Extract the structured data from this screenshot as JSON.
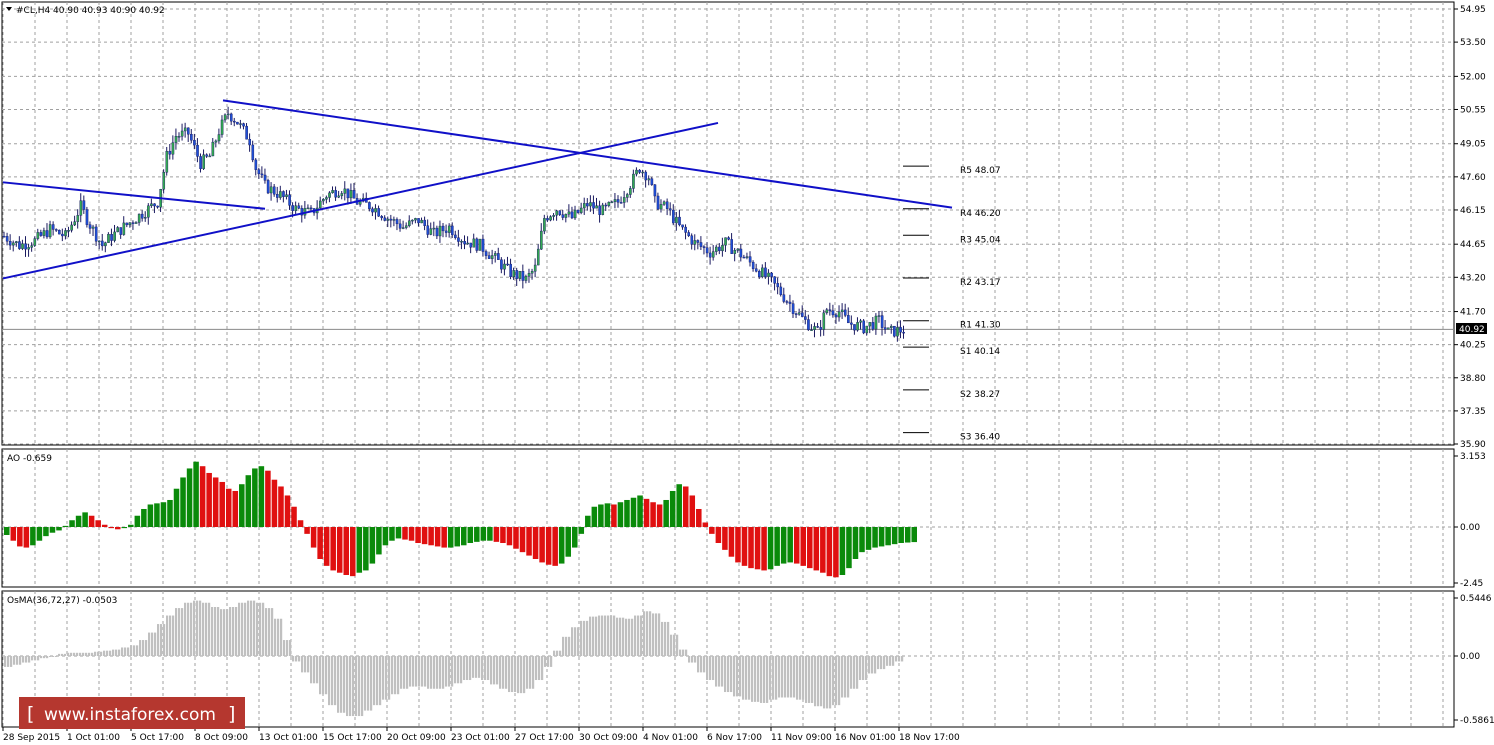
{
  "watermark": "www.instaforex.com",
  "main_panel": {
    "header": "#CL,H4  40.90 40.93 40.90 40.92",
    "last_price": "40.92",
    "price_ticks": [
      "54.95",
      "53.50",
      "52.00",
      "50.55",
      "49.05",
      "47.60",
      "46.15",
      "44.65",
      "43.20",
      "41.70",
      "40.25",
      "38.80",
      "37.35",
      "35.90"
    ],
    "pivot_levels": [
      {
        "label": "R5 48.07",
        "value": 48.07
      },
      {
        "label": "R4 46.20",
        "value": 46.2
      },
      {
        "label": "R3 45.04",
        "value": 45.04
      },
      {
        "label": "R2 43.17",
        "value": 43.17
      },
      {
        "label": "R1 41.30",
        "value": 41.3
      },
      {
        "label": "S1 40.14",
        "value": 40.14
      },
      {
        "label": "S2 38.27",
        "value": 38.27
      },
      {
        "label": "S3 36.40",
        "value": 36.4
      }
    ]
  },
  "ao_panel": {
    "header": "AO -0.659",
    "ticks": [
      "3.153",
      "0.00",
      "-2.45"
    ]
  },
  "osma_panel": {
    "header": "OsMA(36,72,27) -0.0503",
    "ticks": [
      "0.5446",
      "0.00",
      "-0.5861"
    ]
  },
  "time_ticks": [
    "28 Sep 2015",
    "1 Oct 01:00",
    "5 Oct 17:00",
    "8 Oct 09:00",
    "13 Oct 01:00",
    "15 Oct 17:00",
    "20 Oct 09:00",
    "23 Oct 01:00",
    "27 Oct 17:00",
    "30 Oct 09:00",
    "4 Nov 01:00",
    "6 Nov 17:00",
    "11 Nov 09:00",
    "16 Nov 01:00",
    "18 Nov 17:00"
  ],
  "chart_data": {
    "type": "candlestick",
    "symbol": "#CL",
    "timeframe": "H4",
    "ylim": [
      35.9,
      54.95
    ],
    "anchors": [
      [
        0,
        45.0
      ],
      [
        5,
        44.6
      ],
      [
        10,
        44.8
      ],
      [
        15,
        45.3
      ],
      [
        20,
        45.0
      ],
      [
        25,
        46.3
      ],
      [
        28,
        45.5
      ],
      [
        32,
        44.6
      ],
      [
        35,
        45.0
      ],
      [
        40,
        45.5
      ],
      [
        45,
        46.0
      ],
      [
        50,
        46.5
      ],
      [
        53,
        48.5
      ],
      [
        56,
        49.4
      ],
      [
        60,
        49.5
      ],
      [
        64,
        48.2
      ],
      [
        67,
        48.5
      ],
      [
        70,
        49.6
      ],
      [
        73,
        50.4
      ],
      [
        76,
        50.0
      ],
      [
        80,
        49.2
      ],
      [
        82,
        48.0
      ],
      [
        85,
        47.2
      ],
      [
        90,
        46.8
      ],
      [
        95,
        46.2
      ],
      [
        100,
        46.0
      ],
      [
        105,
        46.8
      ],
      [
        110,
        47.1
      ],
      [
        115,
        46.5
      ],
      [
        120,
        46.3
      ],
      [
        125,
        45.8
      ],
      [
        130,
        45.4
      ],
      [
        135,
        45.7
      ],
      [
        140,
        45.1
      ],
      [
        145,
        45.4
      ],
      [
        150,
        44.8
      ],
      [
        155,
        44.6
      ],
      [
        160,
        44.0
      ],
      [
        165,
        43.4
      ],
      [
        170,
        43.1
      ],
      [
        173,
        43.6
      ],
      [
        176,
        45.8
      ],
      [
        180,
        46.2
      ],
      [
        185,
        45.8
      ],
      [
        190,
        46.4
      ],
      [
        195,
        46.1
      ],
      [
        200,
        46.5
      ],
      [
        205,
        47.5
      ],
      [
        207,
        48.0
      ],
      [
        210,
        47.6
      ],
      [
        212,
        46.5
      ],
      [
        216,
        46.2
      ],
      [
        220,
        45.4
      ],
      [
        225,
        44.7
      ],
      [
        230,
        44.3
      ],
      [
        235,
        44.7
      ],
      [
        240,
        44.2
      ],
      [
        245,
        43.6
      ],
      [
        250,
        43.0
      ],
      [
        255,
        42.2
      ],
      [
        260,
        41.4
      ],
      [
        265,
        40.8
      ],
      [
        268,
        41.8
      ],
      [
        272,
        41.7
      ],
      [
        275,
        41.2
      ],
      [
        280,
        41.0
      ],
      [
        285,
        41.3
      ],
      [
        288,
        40.8
      ],
      [
        293,
        40.9
      ]
    ],
    "trendlines": [
      {
        "from": [
          "28 Sep 2015 08:00",
          47.36
        ],
        "to": [
          "12 Oct 13:00",
          46.2
        ]
      },
      {
        "from": [
          "28 Sep 2015 08:00",
          43.15
        ],
        "to": [
          "5 Nov 21:00",
          49.96
        ]
      },
      {
        "from": [
          "8 Oct 13:00",
          50.95
        ],
        "to": [
          "24 Nov 09:00",
          46.25
        ]
      }
    ],
    "ao": [
      -0.35,
      -0.6,
      -0.85,
      -0.9,
      -0.8,
      -0.6,
      -0.4,
      -0.25,
      -0.15,
      0.05,
      0.3,
      0.5,
      0.65,
      0.5,
      0.3,
      0.1,
      -0.05,
      -0.1,
      -0.05,
      0.1,
      0.5,
      0.8,
      1.0,
      1.05,
      1.1,
      1.2,
      1.7,
      2.2,
      2.6,
      2.9,
      2.7,
      2.4,
      2.2,
      2.0,
      1.7,
      1.6,
      1.9,
      2.3,
      2.6,
      2.7,
      2.5,
      2.1,
      1.8,
      1.4,
      0.9,
      0.3,
      -0.3,
      -0.9,
      -1.4,
      -1.7,
      -1.9,
      -2.0,
      -2.1,
      -2.15,
      -2.0,
      -1.9,
      -1.6,
      -1.2,
      -0.8,
      -0.6,
      -0.5,
      -0.55,
      -0.6,
      -0.7,
      -0.75,
      -0.8,
      -0.85,
      -0.9,
      -0.9,
      -0.85,
      -0.8,
      -0.7,
      -0.65,
      -0.6,
      -0.6,
      -0.65,
      -0.7,
      -0.8,
      -0.95,
      -1.1,
      -1.25,
      -1.4,
      -1.55,
      -1.65,
      -1.7,
      -1.6,
      -1.3,
      -0.9,
      -0.3,
      0.5,
      0.9,
      1.0,
      1.05,
      1.0,
      1.1,
      1.2,
      1.3,
      1.4,
      1.25,
      1.1,
      1.0,
      1.2,
      1.6,
      1.9,
      1.8,
      1.4,
      0.8,
      0.2,
      -0.3,
      -0.7,
      -1.0,
      -1.3,
      -1.55,
      -1.7,
      -1.8,
      -1.85,
      -1.9,
      -1.85,
      -1.7,
      -1.6,
      -1.55,
      -1.6,
      -1.7,
      -1.8,
      -1.9,
      -2.0,
      -2.15,
      -2.2,
      -2.1,
      -1.8,
      -1.4,
      -1.1,
      -1.0,
      -0.9,
      -0.85,
      -0.8,
      -0.75,
      -0.7,
      -0.68,
      -0.66
    ],
    "osma": [
      -0.1,
      -0.08,
      -0.06,
      -0.04,
      -0.02,
      0.0,
      0.02,
      0.03,
      0.03,
      0.03,
      0.04,
      0.05,
      0.06,
      0.08,
      0.1,
      0.15,
      0.22,
      0.3,
      0.38,
      0.45,
      0.5,
      0.52,
      0.5,
      0.46,
      0.44,
      0.46,
      0.5,
      0.52,
      0.5,
      0.45,
      0.35,
      0.15,
      -0.05,
      -0.15,
      -0.25,
      -0.35,
      -0.45,
      -0.52,
      -0.55,
      -0.55,
      -0.5,
      -0.45,
      -0.4,
      -0.35,
      -0.3,
      -0.28,
      -0.28,
      -0.3,
      -0.3,
      -0.28,
      -0.25,
      -0.22,
      -0.2,
      -0.22,
      -0.26,
      -0.3,
      -0.33,
      -0.34,
      -0.3,
      -0.22,
      -0.1,
      0.05,
      0.18,
      0.27,
      0.33,
      0.37,
      0.38,
      0.38,
      0.36,
      0.35,
      0.38,
      0.42,
      0.4,
      0.32,
      0.2,
      0.06,
      -0.06,
      -0.15,
      -0.22,
      -0.28,
      -0.33,
      -0.37,
      -0.4,
      -0.42,
      -0.43,
      -0.4,
      -0.38,
      -0.38,
      -0.4,
      -0.43,
      -0.46,
      -0.48,
      -0.45,
      -0.38,
      -0.3,
      -0.22,
      -0.16,
      -0.12,
      -0.09,
      -0.05
    ]
  }
}
